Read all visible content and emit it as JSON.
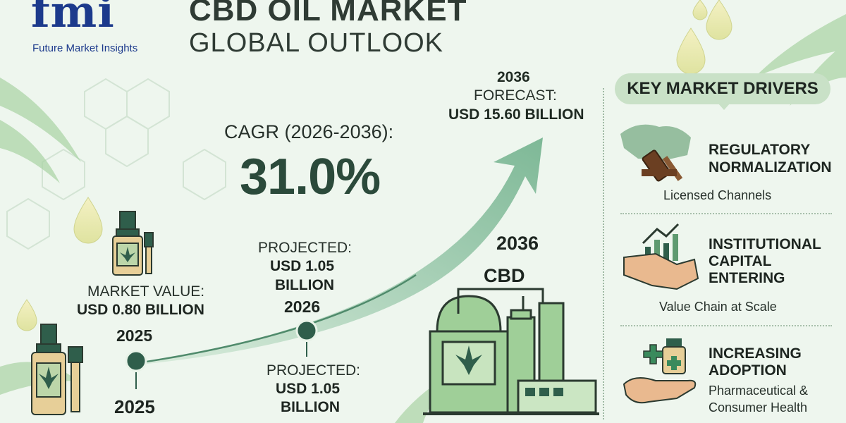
{
  "header": {
    "logo_text": "fmi",
    "logo_subtitle": "Future Market Insights",
    "title_line1": "CBD OIL MARKET",
    "title_line2": "GLOBAL OUTLOOK"
  },
  "cagr": {
    "label": "CAGR (2026-2036):",
    "value": "31.0%"
  },
  "forecast": {
    "year": "2036",
    "label": "FORECAST:",
    "value": "USD 15.60 BILLION"
  },
  "market_value": {
    "label": "MARKET VALUE:",
    "value": "USD 0.80 BILLION",
    "year_upper": "2025",
    "year_lower": "2025"
  },
  "projected_top": {
    "label": "PROJECTED:",
    "value_line1": "USD 1.05",
    "value_line2": "BILLION",
    "year": "2026"
  },
  "projected_bottom": {
    "label": "PROJECTED:",
    "value_line1": "USD 1.05",
    "value_line2": "BILLION"
  },
  "facility": {
    "year": "2036",
    "label": "CBD"
  },
  "drivers": {
    "heading": "KEY MARKET DRIVERS",
    "items": [
      {
        "title_lines": [
          "REGULATORY",
          "NORMALIZATION"
        ],
        "subtitle": "Licensed Channels",
        "icon": "gavel-globe-icon"
      },
      {
        "title_lines": [
          "INSTITUTIONAL",
          "CAPITAL",
          "ENTERING"
        ],
        "subtitle": "Value Chain at Scale",
        "icon": "handshake-growth-icon"
      },
      {
        "title_lines": [
          "INCREASING",
          "ADOPTION"
        ],
        "subtitle_lines": [
          "Pharmaceutical &",
          "Consumer Health"
        ],
        "icon": "hand-medicine-icon"
      }
    ]
  },
  "colors": {
    "accent": "#2f5e4b",
    "arrow": "#8fc2a3",
    "panel": "#c9e1c7",
    "brand": "#1c3a8c"
  }
}
